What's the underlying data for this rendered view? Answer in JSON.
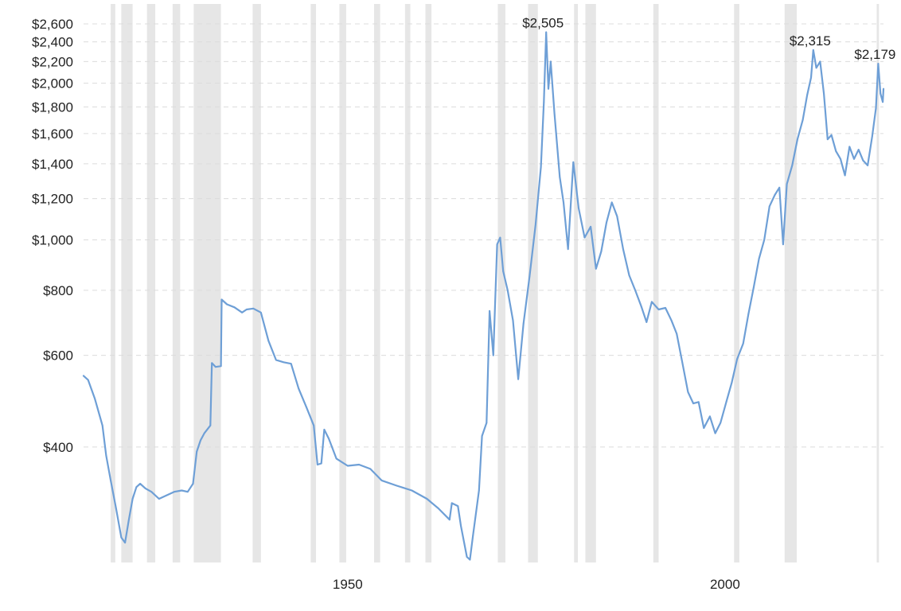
{
  "chart_data": {
    "type": "line",
    "title": "",
    "xlabel": "",
    "ylabel": "",
    "yscale": "log",
    "xlim": [
      1915,
      2021
    ],
    "ylim": [
      240,
      2750
    ],
    "grid": "horizontal dashed",
    "colors": {
      "line": "#6e9fd6",
      "recession": "#e6e6e6",
      "grid": "#dcdcdc"
    },
    "y_ticks": [
      {
        "value": 400,
        "label": "$400"
      },
      {
        "value": 600,
        "label": "$600"
      },
      {
        "value": 800,
        "label": "$800"
      },
      {
        "value": 1000,
        "label": "$1,000"
      },
      {
        "value": 1200,
        "label": "$1,200"
      },
      {
        "value": 1400,
        "label": "$1,400"
      },
      {
        "value": 1600,
        "label": "$1,600"
      },
      {
        "value": 1800,
        "label": "$1,800"
      },
      {
        "value": 2000,
        "label": "$2,000"
      },
      {
        "value": 2200,
        "label": "$2,200"
      },
      {
        "value": 2400,
        "label": "$2,400"
      },
      {
        "value": 2600,
        "label": "$2,600"
      }
    ],
    "x_ticks": [
      {
        "value": 1950,
        "label": "1950"
      },
      {
        "value": 2000,
        "label": "2000"
      }
    ],
    "recessions": [
      [
        1918.6,
        1919.2
      ],
      [
        1920.0,
        1921.5
      ],
      [
        1923.4,
        1924.5
      ],
      [
        1926.8,
        1927.8
      ],
      [
        1929.6,
        1933.2
      ],
      [
        1937.4,
        1938.5
      ],
      [
        1945.1,
        1945.8
      ],
      [
        1948.9,
        1949.8
      ],
      [
        1953.5,
        1954.3
      ],
      [
        1957.6,
        1958.3
      ],
      [
        1960.3,
        1961.1
      ],
      [
        1969.9,
        1970.9
      ],
      [
        1973.9,
        1975.2
      ],
      [
        1980.0,
        1980.5
      ],
      [
        1981.5,
        1982.9
      ],
      [
        1990.5,
        1991.2
      ],
      [
        2001.2,
        2001.9
      ],
      [
        2007.9,
        2009.5
      ],
      [
        2020.1,
        2020.4
      ]
    ],
    "series": [
      {
        "points": [
          [
            1915.0,
            548
          ],
          [
            1915.6,
            538
          ],
          [
            1916.5,
            495
          ],
          [
            1917.5,
            440
          ],
          [
            1918.0,
            385
          ],
          [
            1918.6,
            345
          ],
          [
            1919.3,
            305
          ],
          [
            1920.0,
            268
          ],
          [
            1920.5,
            262
          ],
          [
            1921.0,
            290
          ],
          [
            1921.5,
            318
          ],
          [
            1922.0,
            335
          ],
          [
            1922.5,
            340
          ],
          [
            1923.2,
            333
          ],
          [
            1924.0,
            328
          ],
          [
            1925.0,
            318
          ],
          [
            1926.0,
            323
          ],
          [
            1927.0,
            328
          ],
          [
            1928.0,
            330
          ],
          [
            1928.8,
            328
          ],
          [
            1929.5,
            340
          ],
          [
            1930.0,
            392
          ],
          [
            1930.5,
            412
          ],
          [
            1931.0,
            425
          ],
          [
            1931.8,
            440
          ],
          [
            1932.0,
            580
          ],
          [
            1932.5,
            570
          ],
          [
            1933.2,
            572
          ],
          [
            1933.3,
            768
          ],
          [
            1934.0,
            752
          ],
          [
            1935.0,
            742
          ],
          [
            1936.0,
            725
          ],
          [
            1936.6,
            735
          ],
          [
            1937.5,
            738
          ],
          [
            1938.5,
            725
          ],
          [
            1939.5,
            640
          ],
          [
            1940.5,
            588
          ],
          [
            1941.5,
            582
          ],
          [
            1942.5,
            578
          ],
          [
            1943.5,
            518
          ],
          [
            1944.5,
            478
          ],
          [
            1945.5,
            440
          ],
          [
            1946.0,
            370
          ],
          [
            1946.5,
            372
          ],
          [
            1946.9,
            432
          ],
          [
            1947.5,
            415
          ],
          [
            1948.5,
            380
          ],
          [
            1950.0,
            368
          ],
          [
            1951.5,
            370
          ],
          [
            1953.0,
            363
          ],
          [
            1954.5,
            345
          ],
          [
            1956.5,
            337
          ],
          [
            1958.5,
            330
          ],
          [
            1960.5,
            318
          ],
          [
            1962.0,
            305
          ],
          [
            1963.5,
            290
          ],
          [
            1963.8,
            312
          ],
          [
            1964.6,
            308
          ],
          [
            1965.0,
            282
          ],
          [
            1965.8,
            246
          ],
          [
            1966.2,
            243
          ],
          [
            1966.6,
            270
          ],
          [
            1967.4,
            330
          ],
          [
            1967.8,
            420
          ],
          [
            1968.4,
            445
          ],
          [
            1968.8,
            730
          ],
          [
            1969.3,
            600
          ],
          [
            1969.8,
            980
          ],
          [
            1970.2,
            1010
          ],
          [
            1970.6,
            870
          ],
          [
            1971.2,
            800
          ],
          [
            1971.9,
            700
          ],
          [
            1972.6,
            540
          ],
          [
            1973.3,
            690
          ],
          [
            1974.1,
            850
          ],
          [
            1974.9,
            1070
          ],
          [
            1975.6,
            1380
          ],
          [
            1976.0,
            1840
          ],
          [
            1976.3,
            2505
          ],
          [
            1976.6,
            1950
          ],
          [
            1976.9,
            2200
          ],
          [
            1977.4,
            1750
          ],
          [
            1978.1,
            1320
          ],
          [
            1978.6,
            1180
          ],
          [
            1979.2,
            960
          ],
          [
            1979.9,
            1410
          ],
          [
            1980.6,
            1150
          ],
          [
            1981.4,
            1010
          ],
          [
            1982.2,
            1060
          ],
          [
            1982.9,
            880
          ],
          [
            1983.6,
            950
          ],
          [
            1984.3,
            1080
          ],
          [
            1985.0,
            1180
          ],
          [
            1985.7,
            1110
          ],
          [
            1986.5,
            960
          ],
          [
            1987.3,
            855
          ],
          [
            1988.1,
            800
          ],
          [
            1988.9,
            745
          ],
          [
            1989.6,
            695
          ],
          [
            1990.3,
            760
          ],
          [
            1991.2,
            735
          ],
          [
            1992.1,
            740
          ],
          [
            1992.9,
            700
          ],
          [
            1993.6,
            660
          ],
          [
            1994.3,
            585
          ],
          [
            1995.1,
            510
          ],
          [
            1995.8,
            485
          ],
          [
            1996.5,
            488
          ],
          [
            1997.2,
            435
          ],
          [
            1998.0,
            458
          ],
          [
            1998.7,
            425
          ],
          [
            1999.4,
            445
          ],
          [
            2000.2,
            490
          ],
          [
            2000.9,
            532
          ],
          [
            2001.6,
            590
          ],
          [
            2002.4,
            632
          ],
          [
            2003.1,
            720
          ],
          [
            2003.8,
            810
          ],
          [
            2004.5,
            920
          ],
          [
            2005.2,
            1000
          ],
          [
            2005.9,
            1160
          ],
          [
            2006.6,
            1220
          ],
          [
            2007.2,
            1260
          ],
          [
            2007.7,
            980
          ],
          [
            2008.2,
            1280
          ],
          [
            2008.9,
            1390
          ],
          [
            2009.6,
            1560
          ],
          [
            2010.3,
            1700
          ],
          [
            2010.9,
            1900
          ],
          [
            2011.4,
            2050
          ],
          [
            2011.7,
            2315
          ],
          [
            2012.1,
            2140
          ],
          [
            2012.6,
            2200
          ],
          [
            2013.1,
            1910
          ],
          [
            2013.6,
            1560
          ],
          [
            2014.1,
            1590
          ],
          [
            2014.7,
            1480
          ],
          [
            2015.3,
            1430
          ],
          [
            2015.9,
            1330
          ],
          [
            2016.5,
            1510
          ],
          [
            2017.1,
            1430
          ],
          [
            2017.7,
            1490
          ],
          [
            2018.3,
            1420
          ],
          [
            2018.9,
            1390
          ],
          [
            2019.5,
            1580
          ],
          [
            2020.0,
            1790
          ],
          [
            2020.3,
            2179
          ],
          [
            2020.6,
            1910
          ],
          [
            2020.9,
            1840
          ],
          [
            2021.0,
            1950
          ]
        ]
      }
    ],
    "annotations": [
      {
        "x": 1976.3,
        "y": 2505,
        "label": "$2,505"
      },
      {
        "x": 2011.7,
        "y": 2315,
        "label": "$2,315"
      },
      {
        "x": 2020.3,
        "y": 2179,
        "label": "$2,179"
      }
    ]
  }
}
